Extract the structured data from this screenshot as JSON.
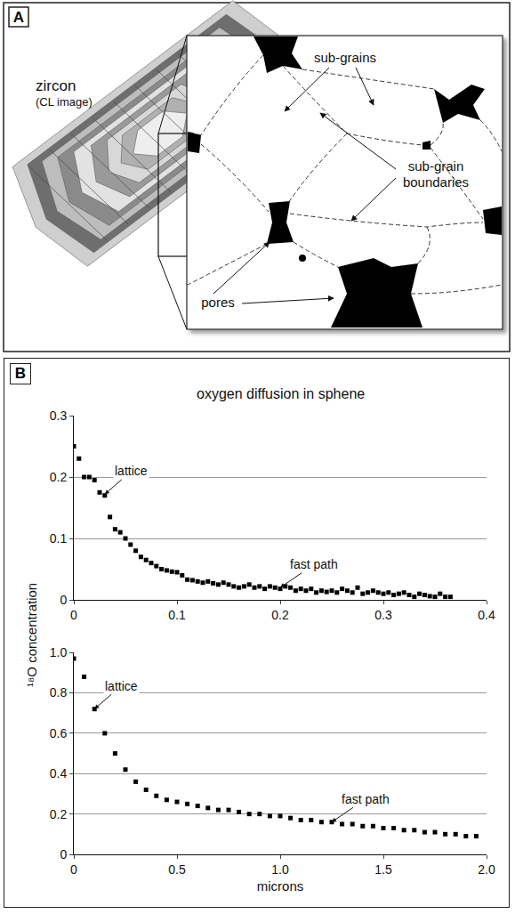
{
  "panel_a": {
    "letter": "A",
    "title": "zircon",
    "subtitle": "(CL image)",
    "labels": {
      "sub_grains": "sub-grains",
      "boundaries": "sub-grain boundaries",
      "pores": "pores"
    }
  },
  "panel_b": {
    "letter": "B",
    "y_label": "¹⁸O concentration"
  },
  "chart_data": [
    {
      "type": "scatter",
      "title": "oxygen diffusion in sphene",
      "color": "#000000",
      "marker": "square",
      "grid": true,
      "x": [
        0,
        0.005,
        0.01,
        0.015,
        0.02,
        0.025,
        0.03,
        0.035,
        0.04,
        0.045,
        0.05,
        0.055,
        0.06,
        0.065,
        0.07,
        0.075,
        0.08,
        0.085,
        0.09,
        0.095,
        0.1,
        0.105,
        0.11,
        0.115,
        0.12,
        0.125,
        0.13,
        0.135,
        0.14,
        0.145,
        0.15,
        0.155,
        0.16,
        0.165,
        0.17,
        0.175,
        0.18,
        0.185,
        0.19,
        0.195,
        0.2,
        0.205,
        0.21,
        0.215,
        0.22,
        0.225,
        0.23,
        0.235,
        0.24,
        0.245,
        0.25,
        0.255,
        0.26,
        0.265,
        0.27,
        0.275,
        0.28,
        0.285,
        0.29,
        0.295,
        0.3,
        0.305,
        0.31,
        0.315,
        0.32,
        0.325,
        0.33,
        0.335,
        0.34,
        0.345,
        0.35,
        0.355,
        0.36,
        0.365
      ],
      "values": [
        0.25,
        0.23,
        0.2,
        0.2,
        0.195,
        0.175,
        0.17,
        0.135,
        0.115,
        0.11,
        0.1,
        0.09,
        0.08,
        0.07,
        0.065,
        0.06,
        0.055,
        0.05,
        0.048,
        0.046,
        0.045,
        0.04,
        0.033,
        0.032,
        0.03,
        0.028,
        0.03,
        0.027,
        0.025,
        0.028,
        0.025,
        0.022,
        0.02,
        0.022,
        0.025,
        0.02,
        0.022,
        0.018,
        0.022,
        0.02,
        0.018,
        0.022,
        0.02,
        0.015,
        0.018,
        0.015,
        0.018,
        0.012,
        0.015,
        0.013,
        0.015,
        0.012,
        0.018,
        0.015,
        0.012,
        0.02,
        0.01,
        0.012,
        0.015,
        0.012,
        0.01,
        0.012,
        0.008,
        0.01,
        0.012,
        0.008,
        0.005,
        0.01,
        0.008,
        0.006,
        0.005,
        0.01,
        0.005,
        0.005
      ],
      "xlim": [
        0,
        0.4
      ],
      "xticks": [
        0,
        0.1,
        0.2,
        0.3,
        0.4
      ],
      "ylim": [
        0,
        0.3
      ],
      "yticks": [
        0,
        0.1,
        0.2,
        0.3
      ],
      "annotations": [
        {
          "text": "lattice",
          "x": 0.03,
          "y": 0.172
        },
        {
          "text": "fast path",
          "x": 0.2,
          "y": 0.02
        }
      ]
    },
    {
      "type": "scatter",
      "x_label": "microns",
      "color": "#000000",
      "marker": "square",
      "grid": true,
      "x": [
        0,
        0.05,
        0.1,
        0.15,
        0.2,
        0.25,
        0.3,
        0.35,
        0.4,
        0.45,
        0.5,
        0.55,
        0.6,
        0.65,
        0.7,
        0.75,
        0.8,
        0.85,
        0.9,
        0.95,
        1.0,
        1.05,
        1.1,
        1.15,
        1.2,
        1.25,
        1.3,
        1.35,
        1.4,
        1.45,
        1.5,
        1.55,
        1.6,
        1.65,
        1.7,
        1.75,
        1.8,
        1.85,
        1.9,
        1.95
      ],
      "values": [
        0.97,
        0.88,
        0.72,
        0.6,
        0.5,
        0.42,
        0.36,
        0.32,
        0.29,
        0.27,
        0.26,
        0.25,
        0.24,
        0.23,
        0.22,
        0.22,
        0.21,
        0.2,
        0.2,
        0.19,
        0.19,
        0.18,
        0.17,
        0.17,
        0.16,
        0.16,
        0.15,
        0.15,
        0.14,
        0.14,
        0.13,
        0.13,
        0.12,
        0.12,
        0.11,
        0.11,
        0.1,
        0.1,
        0.09,
        0.09
      ],
      "xlim": [
        0,
        2
      ],
      "xticks": [
        0,
        0.5,
        {
          "value": 1,
          "label": "1.0"
        },
        1.5,
        {
          "value": 2,
          "label": "2.0"
        }
      ],
      "ylim": [
        0,
        1
      ],
      "yticks": [
        0,
        0.2,
        0.4,
        0.6,
        0.8,
        {
          "value": 1,
          "label": "1.0"
        }
      ],
      "annotations": [
        {
          "text": "lattice",
          "x": 0.1,
          "y": 0.72
        },
        {
          "text": "fast path",
          "x": 1.25,
          "y": 0.16
        }
      ]
    }
  ]
}
